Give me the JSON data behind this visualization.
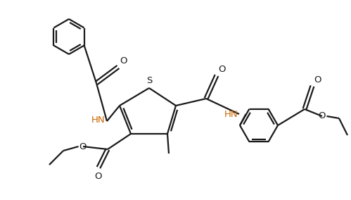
{
  "bg_color": "#ffffff",
  "line_color": "#1a1a1a",
  "N_color": "#cc6600",
  "lw": 1.6,
  "fs": 9.5,
  "figsize": [
    4.99,
    2.84
  ],
  "dpi": 100,
  "xlim": [
    0,
    9.98
  ],
  "ylim": [
    0,
    5.68
  ]
}
